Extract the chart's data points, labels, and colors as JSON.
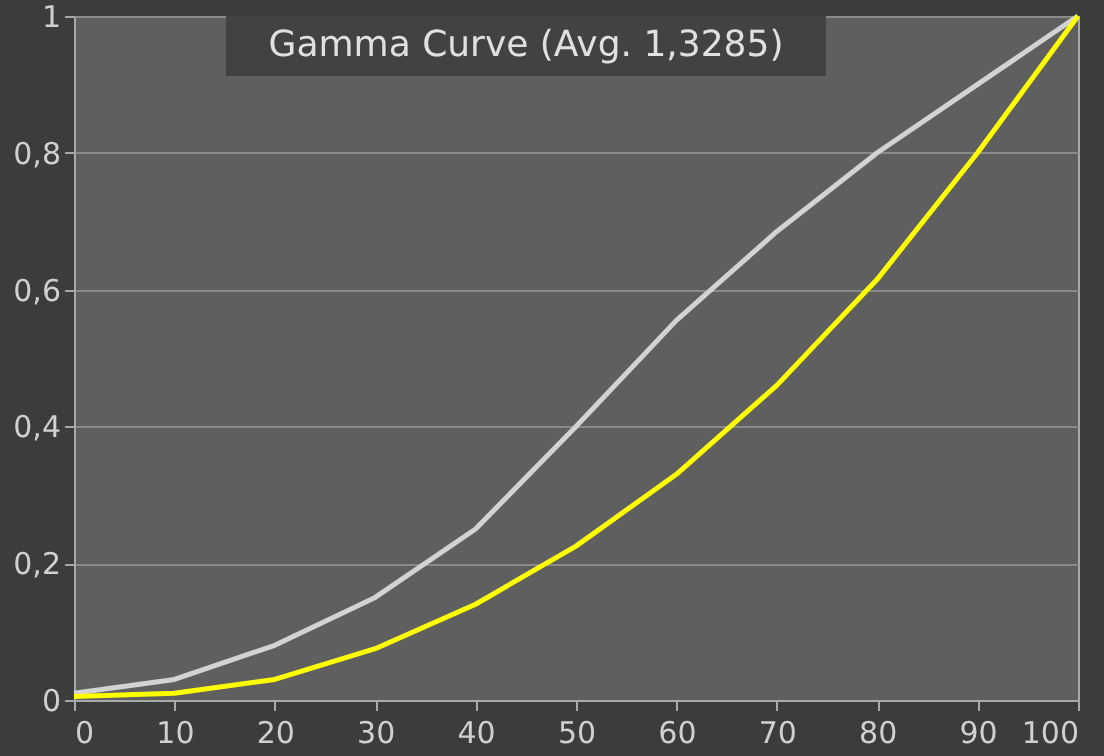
{
  "chart_data": {
    "type": "line",
    "title": "Gamma Curve (Avg. 1,3285)",
    "x": [
      0,
      10,
      20,
      30,
      40,
      50,
      60,
      70,
      80,
      90,
      100
    ],
    "series": [
      {
        "color": "#d3d3d3",
        "values": [
          0.01,
          0.03,
          0.08,
          0.15,
          0.25,
          0.4,
          0.555,
          0.685,
          0.8,
          0.9,
          1
        ]
      },
      {
        "color": "#ffff00",
        "values": [
          0.005,
          0.01,
          0.03,
          0.075,
          0.14,
          0.225,
          0.33,
          0.46,
          0.615,
          0.8,
          1
        ]
      }
    ],
    "xlim": [
      0,
      100
    ],
    "xticks": [
      0,
      10,
      20,
      30,
      40,
      50,
      60,
      70,
      80,
      90,
      100
    ],
    "ylim": [
      0,
      1
    ],
    "yticks": [
      0,
      {
        "value": 0.2,
        "label": "0,2"
      },
      {
        "value": 0.4,
        "label": "0,4"
      },
      {
        "value": 0.6,
        "label": "0,6"
      },
      {
        "value": 0.8,
        "label": "0,8"
      },
      1
    ],
    "grid": "y",
    "marker": "none",
    "line_style": "solid"
  }
}
